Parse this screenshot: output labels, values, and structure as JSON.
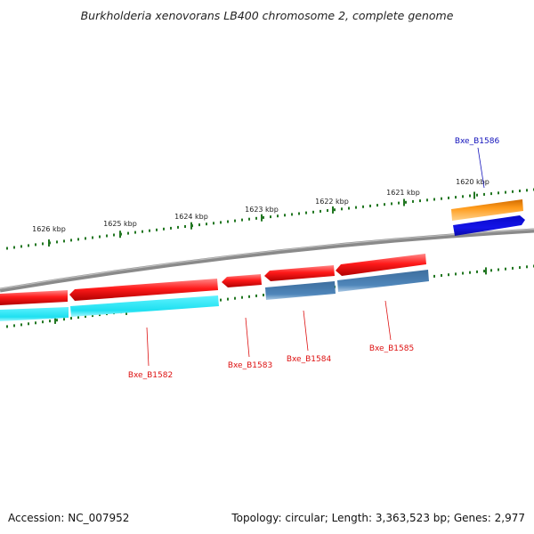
{
  "title": "Burkholderia xenovorans LB400 chromosome 2, complete genome",
  "ruler_labels": [
    "1620 kbp",
    "1621 kbp",
    "1622 kbp",
    "1623 kbp",
    "1624 kbp",
    "1625 kbp",
    "1626 kbp"
  ],
  "gene_labels": {
    "b1582": "Bxe_B1582",
    "b1583": "Bxe_B1583",
    "b1584": "Bxe_B1584",
    "b1585": "Bxe_B1585",
    "b1586": "Bxe_B1586"
  },
  "footer": {
    "accession": "Accession: NC_007952",
    "summary": "Topology: circular; Length: 3,363,523 bp; Genes: 2,977"
  },
  "colors": {
    "cds_red": "#ee1111",
    "cds_cyan": "#22e6f2",
    "cds_steel": "#4a7fb0",
    "cds_orange": "#ff9a1a",
    "cds_blue": "#1010e0",
    "tick_green": "#227722",
    "backbone": "#8a8a8a",
    "label_red": "#dd1111",
    "label_blue": "#1111bb"
  }
}
